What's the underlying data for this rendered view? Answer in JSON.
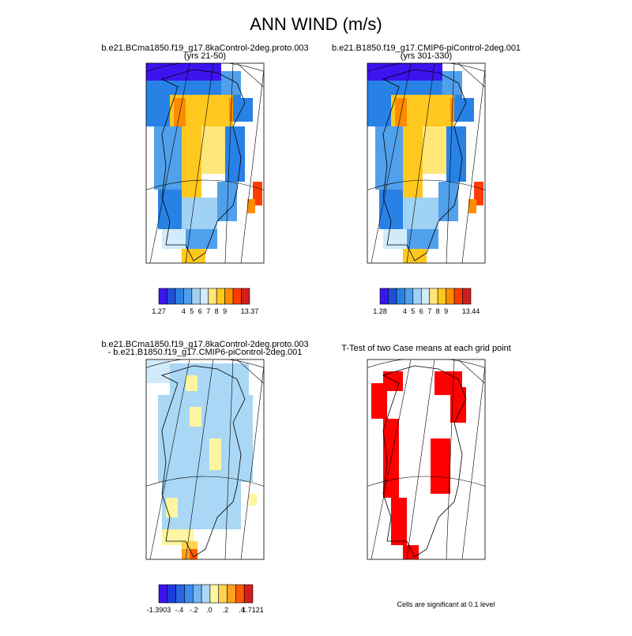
{
  "title": "ANN WIND (m/s)",
  "panels": [
    {
      "title_lines": [
        "b.e21.BCma1850.f19_g17.8kaControl-2deg.proto.003",
        "(yrs 21-50)"
      ],
      "colorbar": {
        "colors": [
          "#3c14f0",
          "#1e50dc",
          "#2882e6",
          "#50a0eb",
          "#a0d2f5",
          "#d2ebfa",
          "#ffe678",
          "#ffc81e",
          "#ff8c00",
          "#ff3c00",
          "#d21e1e"
        ],
        "labels": [
          "1.27",
          "4",
          "5",
          "6",
          "7",
          "8",
          "9",
          "13.37"
        ]
      }
    },
    {
      "title_lines": [
        "b.e21.B1850.f19_g17.CMIP6-piControl-2deg.001",
        "(yrs 301-330)"
      ],
      "colorbar": {
        "colors": [
          "#3c14f0",
          "#1e50dc",
          "#2882e6",
          "#50a0eb",
          "#a0d2f5",
          "#d2ebfa",
          "#ffe678",
          "#ffc81e",
          "#ff8c00",
          "#ff3c00",
          "#d21e1e"
        ],
        "labels": [
          "1.28",
          "4",
          "5",
          "6",
          "7",
          "8",
          "9",
          "13.44"
        ]
      }
    },
    {
      "title_lines": [
        "b.e21.BCma1850.f19_g17.8kaControl-2deg.proto.003",
        "- b.e21.B1850.f19_g17.CMIP6-piControl-2deg.001"
      ],
      "colorbar": {
        "colors": [
          "#3c14f0",
          "#1e3cdc",
          "#2864e6",
          "#3c8cf0",
          "#78b4f0",
          "#aad7f5",
          "#fff5a0",
          "#ffd250",
          "#ffa01e",
          "#ff5a00",
          "#d21e1e"
        ],
        "labels": [
          "-1.3903",
          "-.4",
          "-.2",
          ".0",
          ".2",
          ".4",
          "1.7121"
        ]
      }
    },
    {
      "title_lines": [
        "T-Test of two Case means at each grid point"
      ],
      "footnote": "Cells are significant at 0.1 level"
    }
  ]
}
